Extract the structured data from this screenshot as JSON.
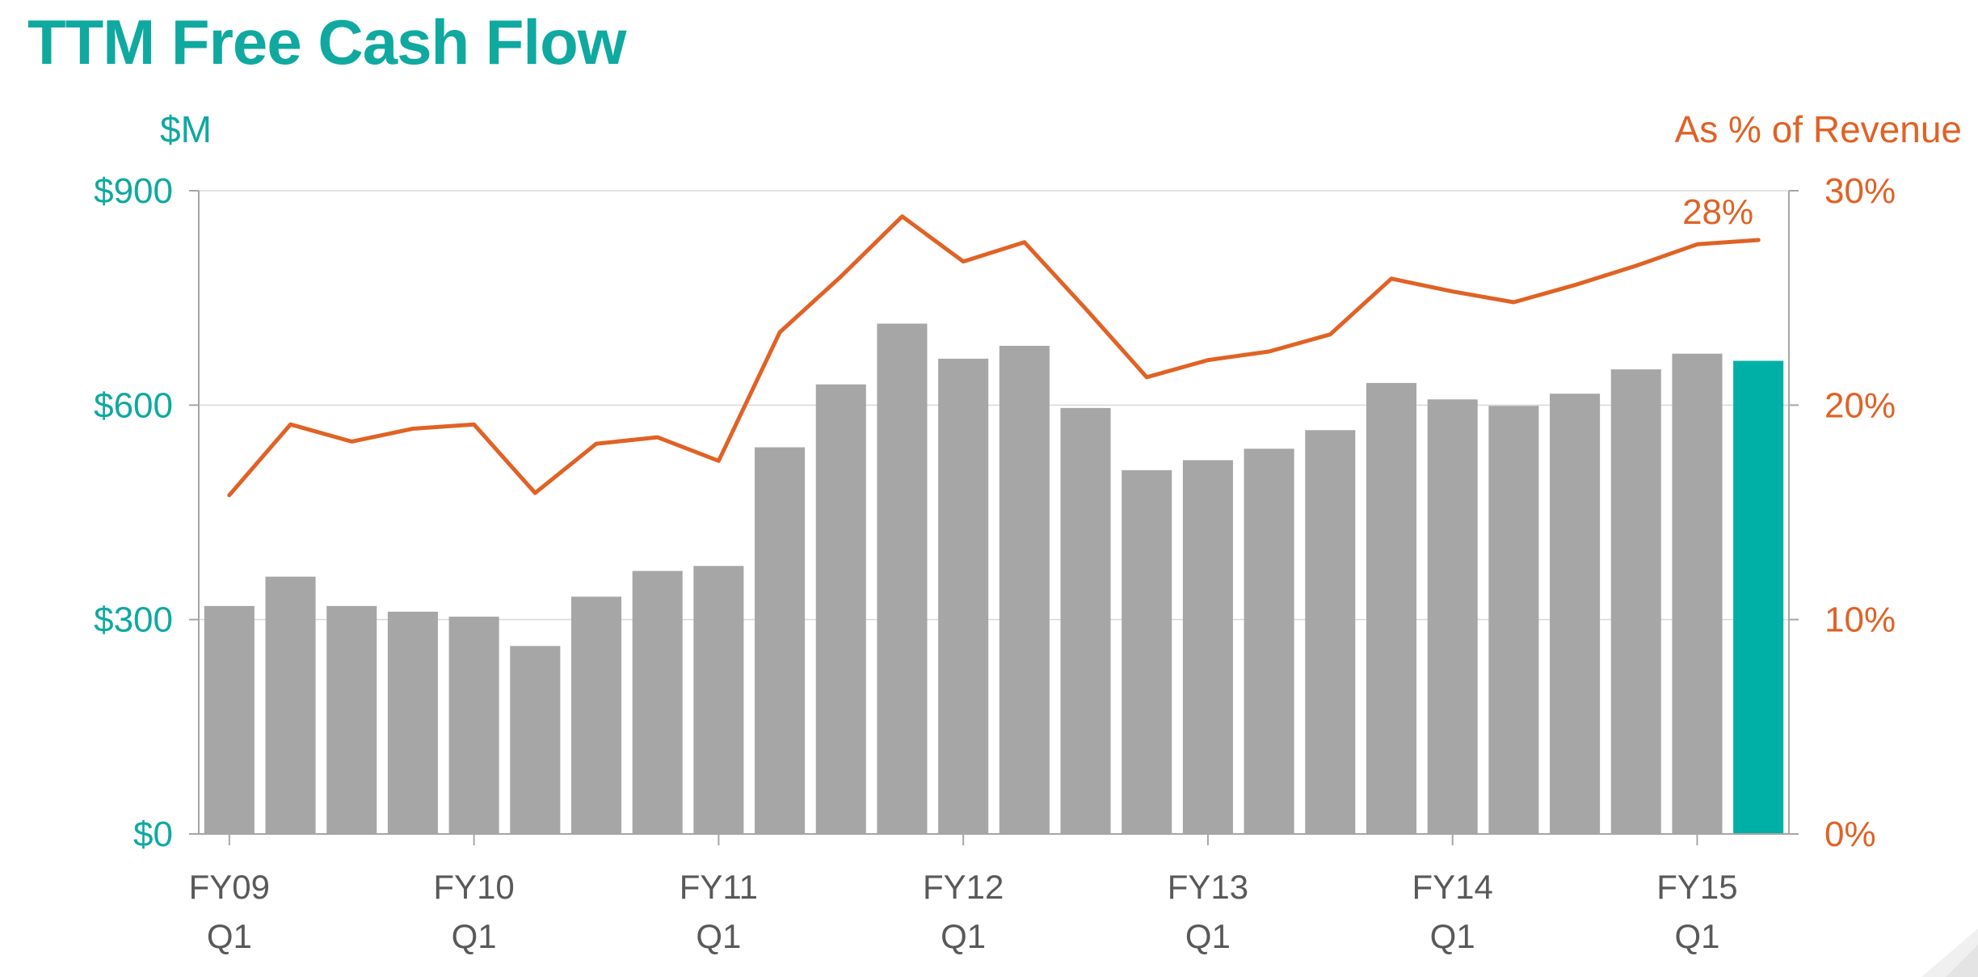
{
  "title": "TTM Free Cash Flow",
  "colors": {
    "title": "#0fa9a0",
    "left_axis": "#0fa9a0",
    "right_axis": "#e06225",
    "bar": "#a6a6a6",
    "bar_highlight": "#00b0a6",
    "line": "#e06225",
    "grid": "#d9d9d9",
    "axis": "#a6a6a6",
    "xtick": "#595959"
  },
  "chart_data": {
    "type": "bar",
    "left_axis_unit": "$M",
    "right_axis_title": "As % of Revenue",
    "left_ticks": [
      "$0",
      "$300",
      "$600",
      "$900"
    ],
    "right_ticks": [
      "0%",
      "10%",
      "20%",
      "30%"
    ],
    "ylim": [
      0,
      900
    ],
    "y2lim": [
      0,
      30
    ],
    "x_labels": [
      {
        "index": 0,
        "line1": "FY09",
        "line2": "Q1"
      },
      {
        "index": 4,
        "line1": "FY10",
        "line2": "Q1"
      },
      {
        "index": 8,
        "line1": "FY11",
        "line2": "Q1"
      },
      {
        "index": 12,
        "line1": "FY12",
        "line2": "Q1"
      },
      {
        "index": 16,
        "line1": "FY13",
        "line2": "Q1"
      },
      {
        "index": 20,
        "line1": "FY14",
        "line2": "Q1"
      },
      {
        "index": 24,
        "line1": "FY15",
        "line2": "Q1"
      }
    ],
    "series": [
      {
        "type": "bar",
        "axis": "left",
        "values": [
          319,
          360,
          319,
          311,
          304,
          263,
          332,
          368,
          375,
          541,
          629,
          714,
          665,
          683,
          596,
          509,
          523,
          539,
          565,
          631,
          608,
          599,
          616,
          650,
          672,
          662
        ],
        "highlight_index": 25
      },
      {
        "type": "line",
        "axis": "right",
        "values": [
          15.8,
          19.1,
          18.3,
          18.9,
          19.1,
          15.9,
          18.2,
          18.5,
          17.4,
          23.4,
          26.0,
          28.8,
          26.7,
          27.6,
          24.5,
          21.3,
          22.1,
          22.5,
          23.3,
          25.9,
          25.3,
          24.8,
          25.6,
          26.5,
          27.5,
          27.7
        ]
      }
    ],
    "annotation": {
      "text": "28%",
      "series": 1,
      "index": 25
    }
  }
}
